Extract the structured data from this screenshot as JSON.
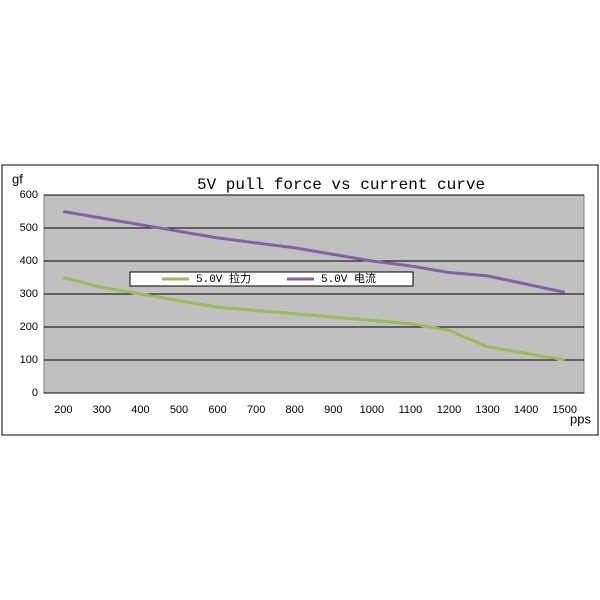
{
  "chart_data": {
    "type": "line",
    "title": "5V pull force vs current curve",
    "y_label": "gf",
    "x_label": "pps",
    "categories": [
      "200",
      "300",
      "400",
      "500",
      "600",
      "700",
      "800",
      "900",
      "1000",
      "1100",
      "1200",
      "1300",
      "1400",
      "1500"
    ],
    "series": [
      {
        "name": "5.0V 拉力",
        "color": "#9bbb59",
        "values": [
          350,
          320,
          300,
          280,
          260,
          250,
          240,
          230,
          220,
          210,
          190,
          140,
          120,
          100
        ]
      },
      {
        "name": "5.0V 电流",
        "color": "#8064a2",
        "values": [
          550,
          530,
          510,
          490,
          470,
          455,
          440,
          420,
          400,
          385,
          365,
          355,
          330,
          305
        ]
      }
    ],
    "ylim": [
      0,
      600
    ],
    "yticks": [
      0,
      100,
      200,
      300,
      400,
      500,
      600
    ],
    "grid": true,
    "legend": "middle-left"
  }
}
